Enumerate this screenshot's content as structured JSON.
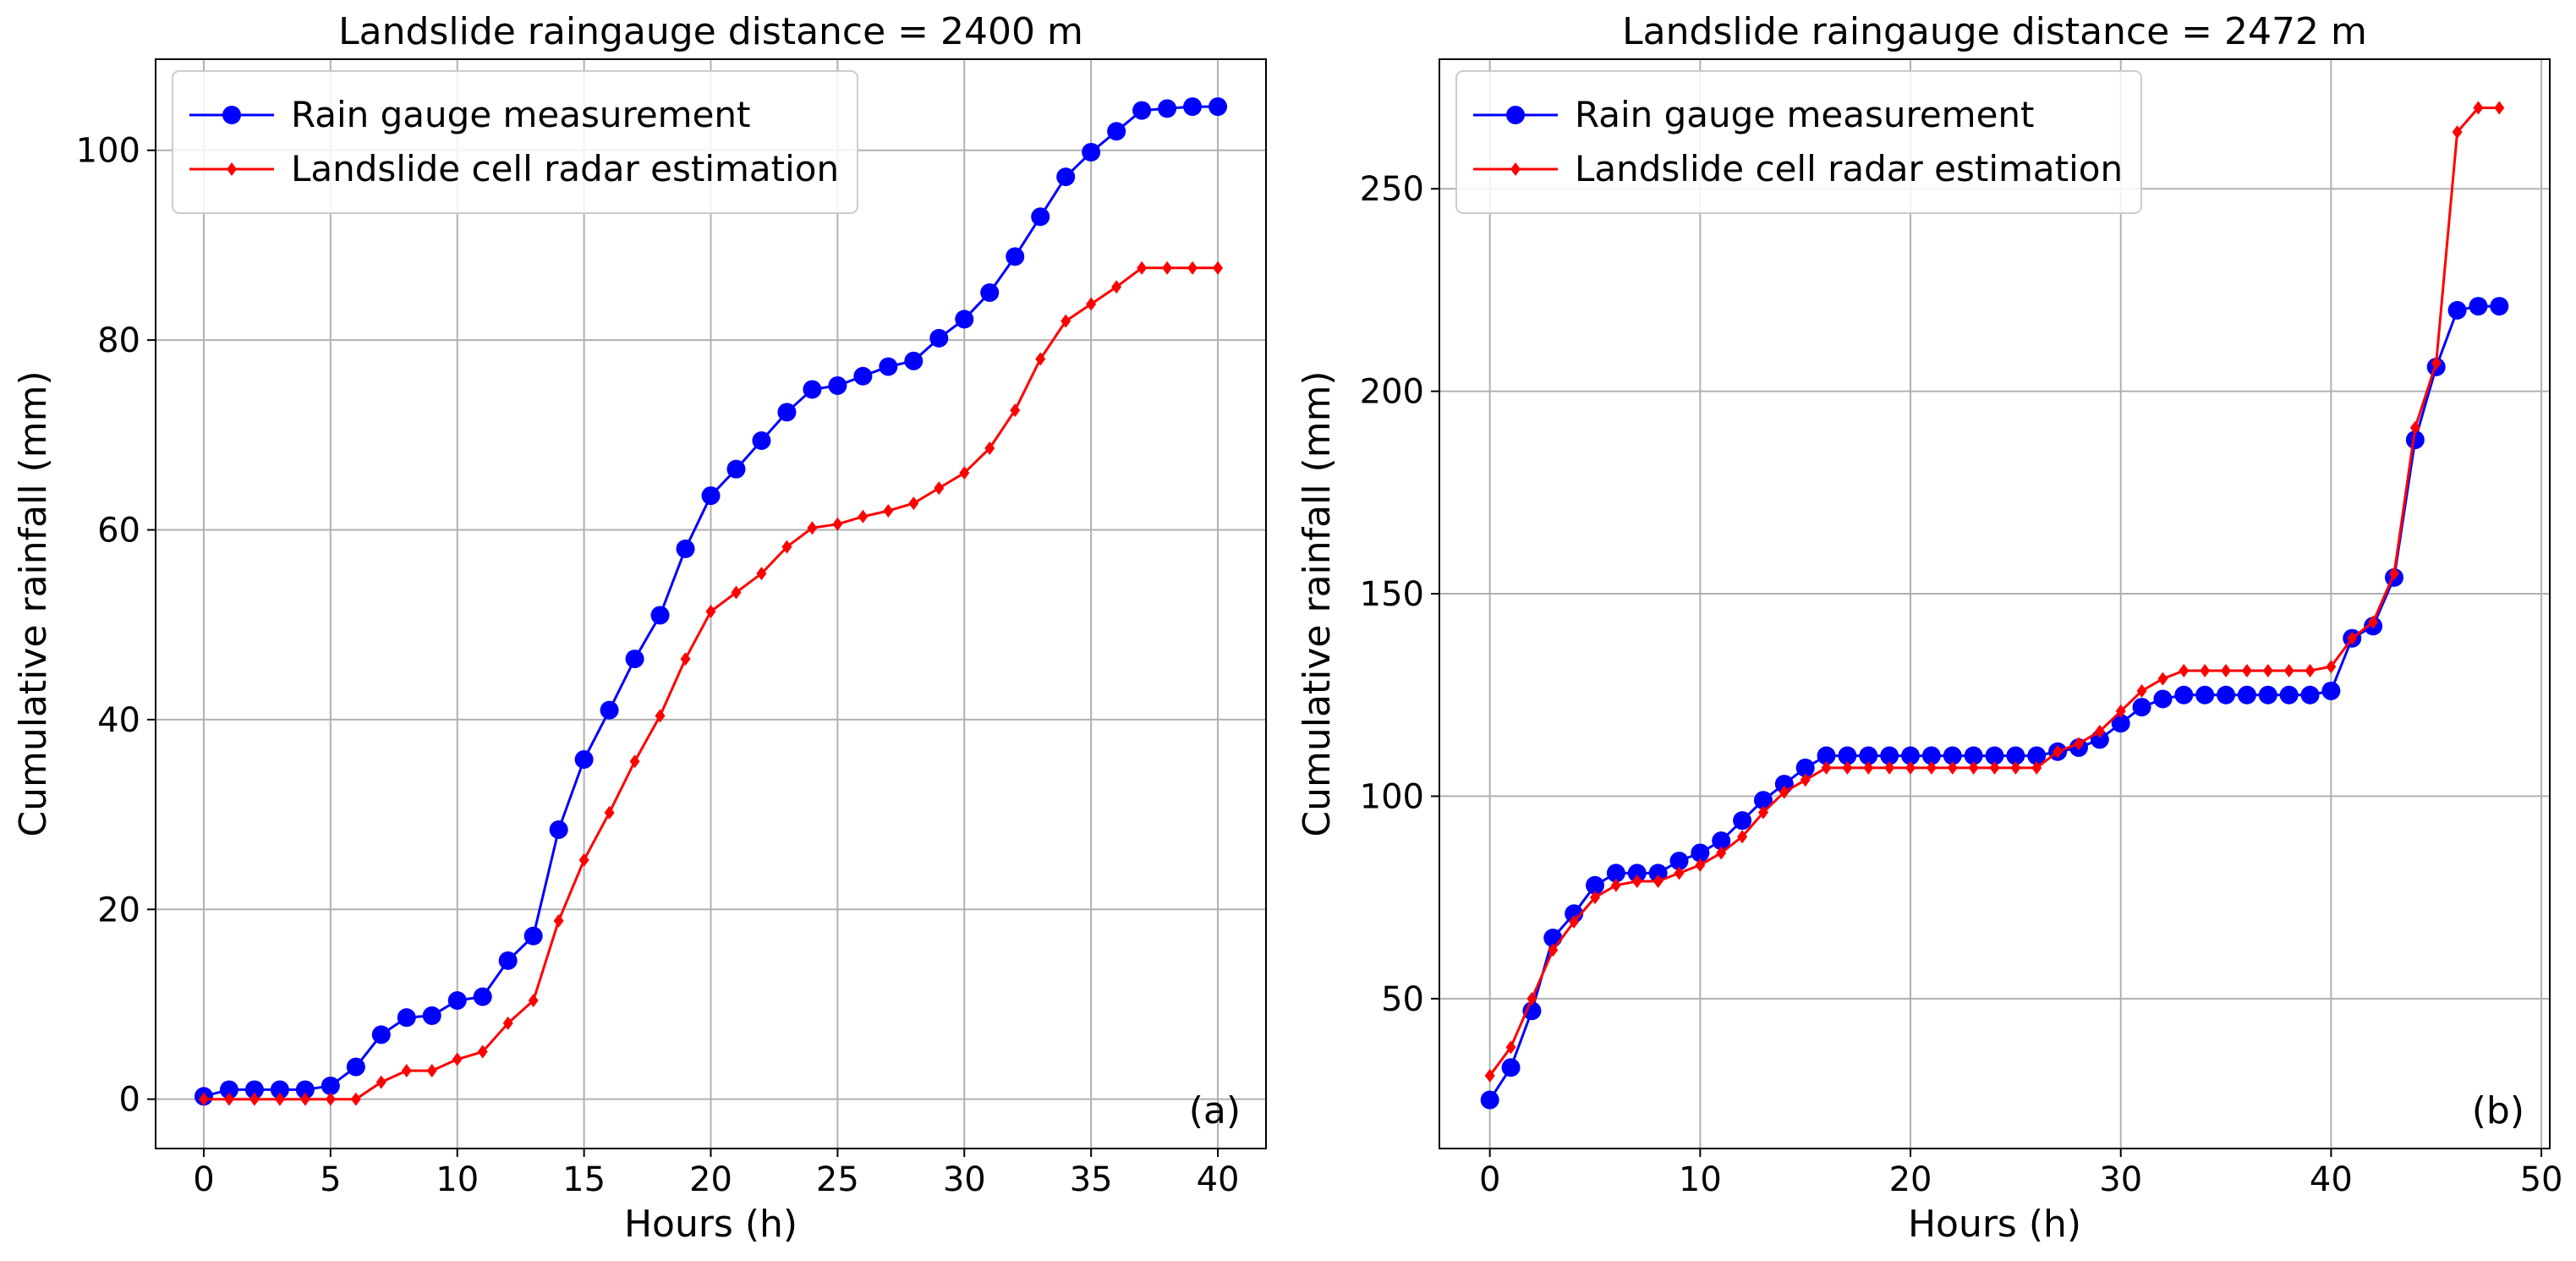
{
  "chart_data": [
    {
      "type": "line",
      "title": "Landslide raingauge distance = 2400 m",
      "xlabel": "Hours (h)",
      "ylabel": "Cumulative rainfall (mm)",
      "panel_label": "(a)",
      "xlim": [
        -1.9,
        41.9
      ],
      "ylim": [
        -5.2,
        109.6
      ],
      "xticks": [
        0,
        5,
        10,
        15,
        20,
        25,
        30,
        35,
        40
      ],
      "yticks": [
        0,
        20,
        40,
        60,
        80,
        100
      ],
      "grid": true,
      "legend": "upper-left",
      "x": [
        0,
        1,
        2,
        3,
        4,
        5,
        6,
        7,
        8,
        9,
        10,
        11,
        12,
        13,
        14,
        15,
        16,
        17,
        18,
        19,
        20,
        21,
        22,
        23,
        24,
        25,
        26,
        27,
        28,
        29,
        30,
        31,
        32,
        33,
        34,
        35,
        36,
        37,
        38,
        39,
        40
      ],
      "series": [
        {
          "name": "Rain gauge measurement",
          "color": "#0000ff",
          "marker": "circle",
          "values": [
            0.3,
            1,
            1,
            1,
            1,
            1.4,
            3.4,
            6.8,
            8.6,
            8.8,
            10.4,
            10.8,
            14.6,
            17.2,
            28.4,
            35.8,
            41.0,
            46.4,
            51.0,
            58.0,
            63.6,
            66.4,
            69.4,
            72.4,
            74.8,
            75.2,
            76.2,
            77.2,
            77.8,
            80.2,
            82.2,
            85.0,
            88.8,
            93.0,
            97.2,
            99.8,
            102.0,
            104.2,
            104.4,
            104.6,
            104.6
          ]
        },
        {
          "name": "Landslide cell radar estimation",
          "color": "#ff0000",
          "marker": "diamond",
          "values": [
            0,
            0,
            0,
            0,
            0,
            0,
            0,
            1.8,
            3.0,
            3.0,
            4.2,
            5.0,
            8.0,
            10.4,
            18.8,
            25.2,
            30.2,
            35.6,
            40.4,
            46.4,
            51.4,
            53.4,
            55.4,
            58.2,
            60.2,
            60.6,
            61.4,
            62.0,
            62.8,
            64.4,
            66.0,
            68.6,
            72.6,
            78.0,
            82.0,
            83.8,
            85.6,
            87.6,
            87.6,
            87.6,
            87.6
          ]
        }
      ]
    },
    {
      "type": "line",
      "title": "Landslide raingauge distance = 2472 m",
      "xlabel": "Hours (h)",
      "ylabel": "Cumulative rainfall (mm)",
      "panel_label": "(b)",
      "xlim": [
        -2.4,
        50.4
      ],
      "ylim": [
        13.0,
        282.0
      ],
      "xticks": [
        0,
        10,
        20,
        30,
        40,
        50
      ],
      "yticks": [
        50,
        100,
        150,
        200,
        250
      ],
      "grid": true,
      "legend": "upper-left",
      "x": [
        0,
        1,
        2,
        3,
        4,
        5,
        6,
        7,
        8,
        9,
        10,
        11,
        12,
        13,
        14,
        15,
        16,
        17,
        18,
        19,
        20,
        21,
        22,
        23,
        24,
        25,
        26,
        27,
        28,
        29,
        30,
        31,
        32,
        33,
        34,
        35,
        36,
        37,
        38,
        39,
        40,
        41,
        42,
        43,
        44,
        45,
        46,
        47,
        48
      ],
      "series": [
        {
          "name": "Rain gauge measurement",
          "color": "#0000ff",
          "marker": "circle",
          "values": [
            25,
            33,
            47,
            65,
            71,
            78,
            81,
            81,
            81,
            84,
            86,
            89,
            94,
            99,
            103,
            107,
            110,
            110,
            110,
            110,
            110,
            110,
            110,
            110,
            110,
            110,
            110,
            111,
            112,
            114,
            118,
            122,
            124,
            125,
            125,
            125,
            125,
            125,
            125,
            125,
            126,
            139,
            142,
            154,
            188,
            206,
            220,
            221,
            221
          ]
        },
        {
          "name": "Landslide cell radar estimation",
          "color": "#ff0000",
          "marker": "diamond",
          "values": [
            31,
            38,
            50,
            62,
            69,
            75,
            78,
            79,
            79,
            81,
            83,
            86,
            90,
            96,
            101,
            104,
            107,
            107,
            107,
            107,
            107,
            107,
            107,
            107,
            107,
            107,
            107,
            111,
            113,
            116,
            121,
            126,
            129,
            131,
            131,
            131,
            131,
            131,
            131,
            131,
            132,
            139,
            143,
            155,
            191,
            207,
            264,
            270,
            270
          ]
        }
      ]
    }
  ]
}
